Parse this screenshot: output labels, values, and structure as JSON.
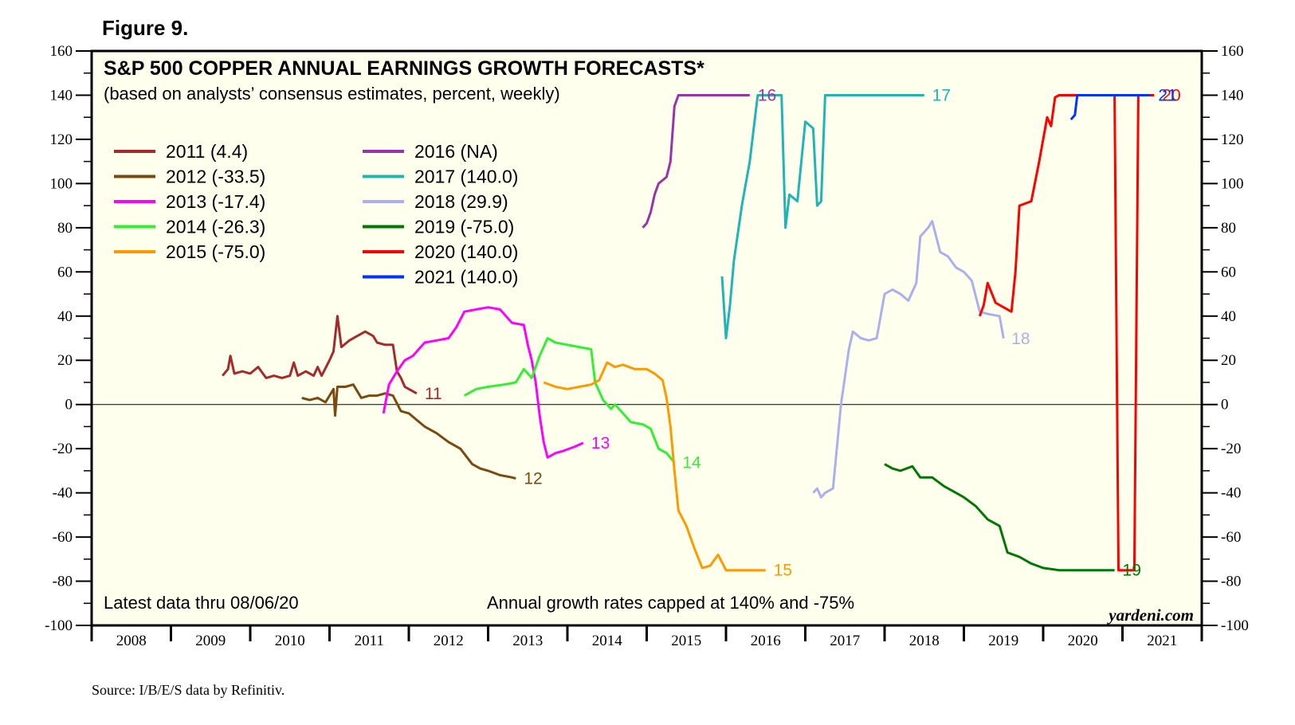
{
  "figure_label": "Figure 9.",
  "source": "Source: I/B/E/S data by Refinitiv.",
  "chart_data": {
    "type": "line",
    "title": "S&P 500 COPPER ANNUAL EARNINGS GROWTH FORECASTS*",
    "subtitle": "(based on analysts’ consensus estimates, percent, weekly)",
    "annotation_left": "Latest data thru 08/06/20",
    "annotation_center": "Annual growth rates capped at 140% and -75%",
    "brand": "yardeni.com",
    "ylim": [
      -100,
      160
    ],
    "xlim": [
      2008.0,
      2022.0
    ],
    "y_ticks": [
      160,
      140,
      120,
      100,
      80,
      60,
      40,
      20,
      0,
      -20,
      -40,
      -60,
      -80,
      -100
    ],
    "x_tick_labels": [
      "2008",
      "2009",
      "2010",
      "2011",
      "2012",
      "2013",
      "2014",
      "2015",
      "2016",
      "2017",
      "2018",
      "2019",
      "2020",
      "2021"
    ],
    "legend_position": "top-left",
    "series": [
      {
        "name": "2011 (4.4)",
        "end_label": "11",
        "color": "#a52a2a",
        "points": [
          [
            2009.65,
            13
          ],
          [
            2009.72,
            16
          ],
          [
            2009.75,
            22
          ],
          [
            2009.8,
            14
          ],
          [
            2009.9,
            15
          ],
          [
            2010.0,
            14
          ],
          [
            2010.1,
            17
          ],
          [
            2010.2,
            12
          ],
          [
            2010.3,
            13
          ],
          [
            2010.4,
            12
          ],
          [
            2010.5,
            13
          ],
          [
            2010.55,
            19
          ],
          [
            2010.6,
            13
          ],
          [
            2010.7,
            15
          ],
          [
            2010.8,
            13
          ],
          [
            2010.85,
            17
          ],
          [
            2010.9,
            13
          ],
          [
            2011.0,
            20
          ],
          [
            2011.05,
            24
          ],
          [
            2011.1,
            40
          ],
          [
            2011.15,
            26
          ],
          [
            2011.25,
            29
          ],
          [
            2011.35,
            31
          ],
          [
            2011.45,
            33
          ],
          [
            2011.55,
            31
          ],
          [
            2011.6,
            28
          ],
          [
            2011.7,
            27
          ],
          [
            2011.8,
            27
          ],
          [
            2011.85,
            15
          ],
          [
            2011.9,
            12
          ],
          [
            2011.95,
            8
          ],
          [
            2012.05,
            6
          ],
          [
            2012.1,
            5
          ]
        ]
      },
      {
        "name": "2012 (-33.5)",
        "end_label": "12",
        "color": "#7a4a10",
        "points": [
          [
            2010.65,
            3
          ],
          [
            2010.75,
            2
          ],
          [
            2010.85,
            3
          ],
          [
            2010.95,
            1
          ],
          [
            2011.05,
            7
          ],
          [
            2011.07,
            -5
          ],
          [
            2011.1,
            8
          ],
          [
            2011.2,
            8
          ],
          [
            2011.3,
            9
          ],
          [
            2011.4,
            3
          ],
          [
            2011.5,
            4
          ],
          [
            2011.6,
            4
          ],
          [
            2011.7,
            5
          ],
          [
            2011.8,
            4
          ],
          [
            2011.9,
            -3
          ],
          [
            2012.0,
            -4
          ],
          [
            2012.1,
            -7
          ],
          [
            2012.2,
            -10
          ],
          [
            2012.35,
            -13
          ],
          [
            2012.5,
            -17
          ],
          [
            2012.65,
            -20
          ],
          [
            2012.8,
            -27
          ],
          [
            2012.9,
            -29
          ],
          [
            2013.0,
            -30
          ],
          [
            2013.15,
            -32
          ],
          [
            2013.3,
            -33
          ],
          [
            2013.35,
            -33.5
          ]
        ]
      },
      {
        "name": "2013 (-17.4)",
        "end_label": "13",
        "color": "#ff00ff",
        "points": [
          [
            2011.68,
            -4
          ],
          [
            2011.75,
            9
          ],
          [
            2011.85,
            15
          ],
          [
            2011.95,
            20
          ],
          [
            2012.05,
            22
          ],
          [
            2012.2,
            28
          ],
          [
            2012.35,
            29
          ],
          [
            2012.5,
            30
          ],
          [
            2012.6,
            35
          ],
          [
            2012.7,
            42
          ],
          [
            2012.85,
            43
          ],
          [
            2013.0,
            44
          ],
          [
            2013.15,
            43
          ],
          [
            2013.3,
            37
          ],
          [
            2013.45,
            36
          ],
          [
            2013.5,
            27
          ],
          [
            2013.55,
            20
          ],
          [
            2013.6,
            10
          ],
          [
            2013.65,
            -5
          ],
          [
            2013.7,
            -17
          ],
          [
            2013.75,
            -24
          ],
          [
            2013.85,
            -22
          ],
          [
            2013.95,
            -21
          ],
          [
            2014.1,
            -19
          ],
          [
            2014.2,
            -17.4
          ]
        ]
      },
      {
        "name": "2014 (-26.3)",
        "end_label": "14",
        "color": "#33ee33",
        "points": [
          [
            2012.7,
            4
          ],
          [
            2012.85,
            7
          ],
          [
            2013.0,
            8
          ],
          [
            2013.2,
            9
          ],
          [
            2013.35,
            10
          ],
          [
            2013.45,
            16
          ],
          [
            2013.55,
            12
          ],
          [
            2013.65,
            22
          ],
          [
            2013.75,
            30
          ],
          [
            2013.85,
            28
          ],
          [
            2014.0,
            27
          ],
          [
            2014.15,
            26
          ],
          [
            2014.3,
            25
          ],
          [
            2014.35,
            10
          ],
          [
            2014.45,
            2
          ],
          [
            2014.55,
            -2
          ],
          [
            2014.6,
            0
          ],
          [
            2014.7,
            -4
          ],
          [
            2014.8,
            -8
          ],
          [
            2014.95,
            -9
          ],
          [
            2015.05,
            -11
          ],
          [
            2015.15,
            -20
          ],
          [
            2015.25,
            -22
          ],
          [
            2015.35,
            -26.3
          ]
        ]
      },
      {
        "name": "2015 (-75.0)",
        "end_label": "15",
        "color": "#ff9900",
        "points": [
          [
            2013.7,
            10
          ],
          [
            2013.85,
            8
          ],
          [
            2014.0,
            7
          ],
          [
            2014.15,
            8
          ],
          [
            2014.3,
            9
          ],
          [
            2014.4,
            11
          ],
          [
            2014.5,
            19
          ],
          [
            2014.6,
            17
          ],
          [
            2014.7,
            18
          ],
          [
            2014.85,
            16
          ],
          [
            2015.0,
            16
          ],
          [
            2015.1,
            14
          ],
          [
            2015.2,
            11
          ],
          [
            2015.25,
            3
          ],
          [
            2015.3,
            -10
          ],
          [
            2015.35,
            -30
          ],
          [
            2015.4,
            -48
          ],
          [
            2015.5,
            -55
          ],
          [
            2015.6,
            -65
          ],
          [
            2015.7,
            -74
          ],
          [
            2015.8,
            -73
          ],
          [
            2015.9,
            -68
          ],
          [
            2016.0,
            -75
          ],
          [
            2016.2,
            -75
          ],
          [
            2016.5,
            -75
          ]
        ]
      },
      {
        "name": "2016 (NA)",
        "end_label": "16",
        "color": "#9933aa",
        "points": [
          [
            2014.95,
            80
          ],
          [
            2015.0,
            82
          ],
          [
            2015.05,
            87
          ],
          [
            2015.1,
            95
          ],
          [
            2015.15,
            100
          ],
          [
            2015.25,
            103
          ],
          [
            2015.3,
            110
          ],
          [
            2015.35,
            135
          ],
          [
            2015.4,
            140
          ],
          [
            2015.6,
            140
          ],
          [
            2015.8,
            140
          ],
          [
            2016.3,
            140
          ]
        ]
      },
      {
        "name": "2017 (140.0)",
        "end_label": "17",
        "color": "#1fb5b5",
        "points": [
          [
            2015.95,
            58
          ],
          [
            2016.0,
            30
          ],
          [
            2016.05,
            45
          ],
          [
            2016.1,
            65
          ],
          [
            2016.2,
            90
          ],
          [
            2016.3,
            110
          ],
          [
            2016.35,
            125
          ],
          [
            2016.4,
            140
          ],
          [
            2016.7,
            140
          ],
          [
            2016.75,
            80
          ],
          [
            2016.8,
            95
          ],
          [
            2016.9,
            92
          ],
          [
            2017.0,
            128
          ],
          [
            2017.1,
            125
          ],
          [
            2017.15,
            90
          ],
          [
            2017.2,
            92
          ],
          [
            2017.25,
            140
          ],
          [
            2017.6,
            140
          ],
          [
            2018.0,
            140
          ],
          [
            2018.5,
            140
          ]
        ]
      },
      {
        "name": "2018 (29.9)",
        "end_label": "18",
        "color": "#aab0ee",
        "points": [
          [
            2017.1,
            -40
          ],
          [
            2017.15,
            -38
          ],
          [
            2017.2,
            -42
          ],
          [
            2017.25,
            -40
          ],
          [
            2017.35,
            -38
          ],
          [
            2017.45,
            0
          ],
          [
            2017.55,
            25
          ],
          [
            2017.6,
            33
          ],
          [
            2017.7,
            30
          ],
          [
            2017.8,
            29
          ],
          [
            2017.9,
            30
          ],
          [
            2018.0,
            50
          ],
          [
            2018.1,
            52
          ],
          [
            2018.2,
            50
          ],
          [
            2018.3,
            47
          ],
          [
            2018.4,
            55
          ],
          [
            2018.45,
            76
          ],
          [
            2018.55,
            80
          ],
          [
            2018.6,
            83
          ],
          [
            2018.7,
            69
          ],
          [
            2018.8,
            67
          ],
          [
            2018.9,
            62
          ],
          [
            2019.0,
            60
          ],
          [
            2019.1,
            56
          ],
          [
            2019.2,
            42
          ],
          [
            2019.3,
            41
          ],
          [
            2019.45,
            40
          ],
          [
            2019.5,
            29.9
          ]
        ]
      },
      {
        "name": "2019 (-75.0)",
        "end_label": "19",
        "color": "#007700",
        "points": [
          [
            2018.0,
            -27
          ],
          [
            2018.1,
            -29
          ],
          [
            2018.2,
            -30
          ],
          [
            2018.35,
            -28
          ],
          [
            2018.45,
            -33
          ],
          [
            2018.6,
            -33
          ],
          [
            2018.75,
            -37
          ],
          [
            2018.9,
            -40
          ],
          [
            2019.0,
            -42
          ],
          [
            2019.15,
            -46
          ],
          [
            2019.3,
            -52
          ],
          [
            2019.45,
            -55
          ],
          [
            2019.55,
            -67
          ],
          [
            2019.7,
            -69
          ],
          [
            2019.85,
            -72
          ],
          [
            2020.0,
            -74
          ],
          [
            2020.2,
            -75
          ],
          [
            2020.5,
            -75
          ],
          [
            2020.9,
            -75
          ]
        ]
      },
      {
        "name": "2020 (140.0)",
        "end_label": "20",
        "color": "#ff0000",
        "points": [
          [
            2019.2,
            40
          ],
          [
            2019.25,
            45
          ],
          [
            2019.3,
            55
          ],
          [
            2019.4,
            46
          ],
          [
            2019.5,
            44
          ],
          [
            2019.6,
            42
          ],
          [
            2019.65,
            60
          ],
          [
            2019.7,
            90
          ],
          [
            2019.85,
            92
          ],
          [
            2019.95,
            110
          ],
          [
            2020.05,
            130
          ],
          [
            2020.1,
            126
          ],
          [
            2020.15,
            139
          ],
          [
            2020.2,
            140
          ],
          [
            2020.4,
            140
          ],
          [
            2020.6,
            140
          ],
          [
            2020.9,
            140
          ],
          [
            2020.95,
            -75
          ],
          [
            2021.0,
            -75
          ],
          [
            2021.15,
            -75
          ],
          [
            2021.2,
            140
          ],
          [
            2021.4,
            140
          ]
        ]
      },
      {
        "name": "2021 (140.0)",
        "end_label": "21",
        "color": "#0033ff",
        "points": [
          [
            2020.35,
            129
          ],
          [
            2020.4,
            131
          ],
          [
            2020.43,
            140
          ],
          [
            2020.6,
            140
          ],
          [
            2020.8,
            140
          ],
          [
            2020.9,
            140
          ],
          [
            2021.2,
            140
          ],
          [
            2021.35,
            140
          ]
        ]
      }
    ]
  }
}
